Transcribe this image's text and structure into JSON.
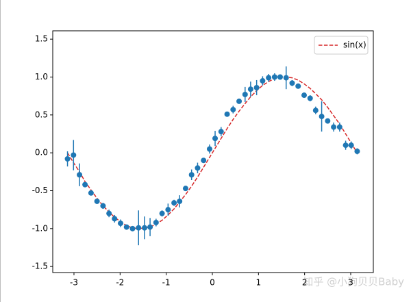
{
  "chart_data": {
    "type": "errorbar",
    "x": [
      -3.14,
      -3.01,
      -2.88,
      -2.76,
      -2.63,
      -2.5,
      -2.37,
      -2.24,
      -2.12,
      -1.99,
      -1.86,
      -1.73,
      -1.6,
      -1.47,
      -1.35,
      -1.22,
      -1.09,
      -0.96,
      -0.83,
      -0.71,
      -0.58,
      -0.45,
      -0.32,
      -0.19,
      -0.06,
      0.06,
      0.19,
      0.32,
      0.45,
      0.58,
      0.71,
      0.83,
      0.96,
      1.09,
      1.22,
      1.35,
      1.47,
      1.6,
      1.73,
      1.86,
      1.99,
      2.12,
      2.24,
      2.37,
      2.5,
      2.63,
      2.76,
      2.89,
      3.01,
      3.14
    ],
    "series": [
      {
        "name": "sin(x)",
        "color": "#d62728",
        "style": "dashed",
        "kind": "line",
        "values": [
          0.0,
          -0.13,
          -0.25,
          -0.38,
          -0.49,
          -0.6,
          -0.7,
          -0.78,
          -0.85,
          -0.91,
          -0.96,
          -0.99,
          -1.0,
          -0.99,
          -0.98,
          -0.94,
          -0.89,
          -0.82,
          -0.74,
          -0.65,
          -0.55,
          -0.44,
          -0.32,
          -0.19,
          -0.06,
          0.06,
          0.19,
          0.32,
          0.44,
          0.55,
          0.65,
          0.74,
          0.82,
          0.89,
          0.94,
          0.98,
          0.99,
          1.0,
          0.99,
          0.96,
          0.91,
          0.85,
          0.78,
          0.7,
          0.6,
          0.49,
          0.38,
          0.25,
          0.13,
          0.0
        ]
      },
      {
        "color": "#1f77b4",
        "kind": "points",
        "values": [
          -0.08,
          -0.03,
          -0.29,
          -0.42,
          -0.53,
          -0.64,
          -0.7,
          -0.8,
          -0.87,
          -0.93,
          -0.98,
          -1.0,
          -0.99,
          -0.99,
          -0.98,
          -0.92,
          -0.8,
          -0.75,
          -0.66,
          -0.64,
          -0.47,
          -0.29,
          -0.2,
          -0.1,
          0.05,
          0.19,
          0.28,
          0.51,
          0.57,
          0.68,
          0.77,
          0.84,
          0.86,
          0.95,
          0.99,
          1.0,
          1.0,
          0.99,
          0.92,
          0.88,
          0.76,
          0.72,
          0.56,
          0.48,
          0.42,
          0.34,
          0.34,
          0.1,
          0.1,
          0.02
        ],
        "errors": [
          0.1,
          0.2,
          0.15,
          0.03,
          0.02,
          0.02,
          0.04,
          0.05,
          0.05,
          0.05,
          0.02,
          0.03,
          0.23,
          0.15,
          0.12,
          0.05,
          0.04,
          0.08,
          0.04,
          0.08,
          0.03,
          0.07,
          0.07,
          0.03,
          0.06,
          0.1,
          0.06,
          0.03,
          0.05,
          0.03,
          0.1,
          0.1,
          0.1,
          0.06,
          0.05,
          0.05,
          0.03,
          0.15,
          0.04,
          0.03,
          0.03,
          0.04,
          0.05,
          0.2,
          0.03,
          0.06,
          0.06,
          0.06,
          0.05,
          0.04
        ]
      }
    ],
    "xlim": [
      -3.46,
      3.49
    ],
    "ylim": [
      -1.58,
      1.61
    ],
    "xticks": [
      -3,
      -2,
      -1,
      0,
      1,
      2,
      3
    ],
    "yticks": [
      {
        "value": -1.5,
        "label": "-1.5"
      },
      {
        "value": -1.0,
        "label": "-1.0"
      },
      {
        "value": -0.5,
        "label": "-0.5"
      },
      {
        "value": 0,
        "label": "0.0"
      },
      {
        "value": 0.5,
        "label": "0.5"
      },
      {
        "value": 1.0,
        "label": "1.0"
      },
      {
        "value": 1.5,
        "label": "1.5"
      }
    ],
    "legend": "upper right"
  },
  "watermark": "知乎 @小狗贝贝Baby"
}
